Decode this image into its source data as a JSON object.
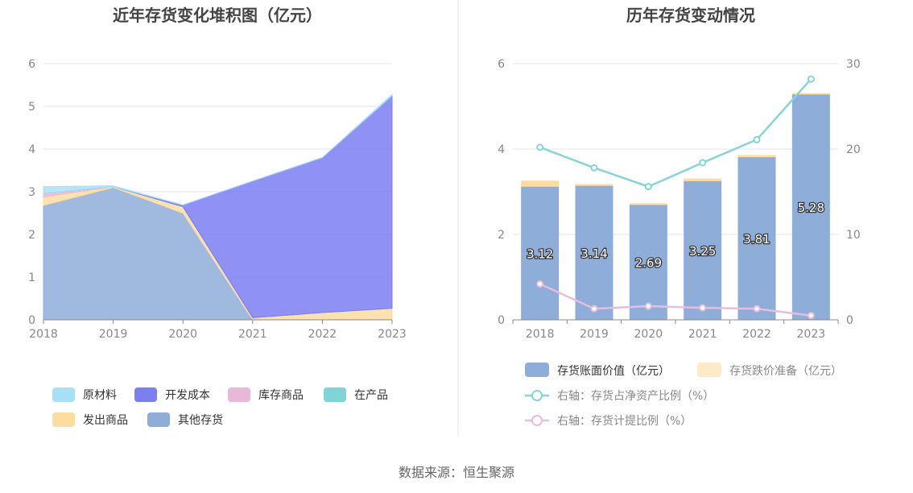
{
  "source": "数据来源：恒生聚源",
  "colors": {
    "raw": "#a8e0f6",
    "dev": "#7b7ff2",
    "stock": "#e8b8d8",
    "wip": "#7fd4d4",
    "shipped": "#fddca0",
    "other": "#8fadd9",
    "bar_book": "#8fadd9",
    "bar_reserve": "#fddca0",
    "line_ratio": "#87d4d8",
    "line_provision": "#e6bedc"
  },
  "chart_data": [
    {
      "type": "area",
      "title": "近年存货变化堆积图（亿元）",
      "x": [
        "2018",
        "2019",
        "2020",
        "2021",
        "2022",
        "2023"
      ],
      "ylim": [
        0,
        6
      ],
      "yticks": [
        0,
        1,
        2,
        3,
        4,
        5,
        6
      ],
      "grid": true,
      "legend_position": "bottom",
      "series": [
        {
          "name": "其他存货",
          "key": "other",
          "values": [
            2.68,
            3.1,
            2.5,
            0.0,
            0.0,
            0.0
          ]
        },
        {
          "name": "发出商品",
          "key": "shipped",
          "values": [
            0.2,
            0.02,
            0.15,
            0.05,
            0.17,
            0.27
          ]
        },
        {
          "name": "库存商品",
          "key": "stock",
          "values": [
            0.08,
            0.0,
            0.0,
            0.0,
            0.0,
            0.0
          ]
        },
        {
          "name": "在产品",
          "key": "wip",
          "values": [
            0.0,
            0.0,
            0.0,
            0.0,
            0.0,
            0.0
          ]
        },
        {
          "name": "开发成本",
          "key": "dev",
          "values": [
            0.0,
            0.0,
            0.04,
            3.2,
            3.63,
            4.98
          ]
        },
        {
          "name": "原材料",
          "key": "raw",
          "values": [
            0.16,
            0.02,
            0.0,
            0.0,
            0.0,
            0.03
          ]
        }
      ],
      "legend": [
        "原材料",
        "开发成本",
        "库存商品",
        "在产品",
        "发出商品",
        "其他存货"
      ]
    },
    {
      "type": "bar",
      "title": "历年存货变动情况",
      "categories": [
        "2018",
        "2019",
        "2020",
        "2021",
        "2022",
        "2023"
      ],
      "ylim": [
        0,
        6
      ],
      "yticks": [
        0,
        2,
        4,
        6
      ],
      "y2lim": [
        0,
        30
      ],
      "y2ticks": [
        0,
        10,
        20,
        30
      ],
      "grid": true,
      "legend_position": "bottom",
      "series": [
        {
          "name": "存货账面价值（亿元）",
          "values": [
            3.12,
            3.14,
            2.69,
            3.25,
            3.81,
            5.28
          ],
          "labels": [
            "3.12",
            "3.14",
            "2.69",
            "3.25",
            "3.81",
            "5.28"
          ]
        },
        {
          "name": "存货跌价准备（亿元）",
          "values": [
            0.14,
            0.04,
            0.04,
            0.06,
            0.05,
            0.03
          ]
        },
        {
          "name": "右轴：存货占净资产比例（%）",
          "axis": "right",
          "type": "line",
          "values": [
            20.2,
            17.8,
            15.6,
            18.4,
            21.1,
            28.2
          ]
        },
        {
          "name": "右轴：存货计提比例（%）",
          "axis": "right",
          "type": "line",
          "values": [
            4.2,
            1.3,
            1.6,
            1.4,
            1.3,
            0.5
          ]
        }
      ]
    }
  ]
}
